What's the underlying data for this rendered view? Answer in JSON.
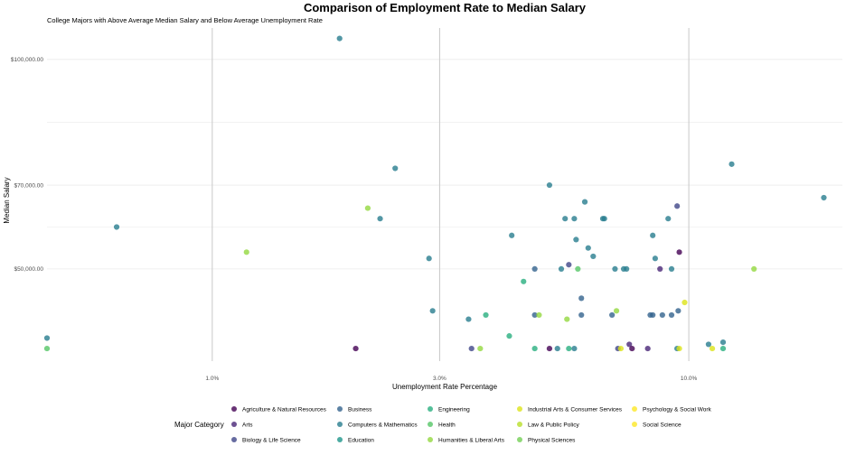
{
  "chart_data": {
    "type": "scatter",
    "title": "Comparison of Employment Rate to Median Salary",
    "subtitle": "College Majors with Above Average Median Salary and Below Average Unemployment Rate",
    "xlabel": "Unemployment Rate Percentage",
    "ylabel": "Median Salary",
    "x_scale": "log",
    "xlim": [
      0.45,
      21.0
    ],
    "ylim": [
      28000,
      107500
    ],
    "x_ticks": [
      1.0,
      3.0,
      10.0
    ],
    "x_tick_labels": [
      "1.0%",
      "3.0%",
      "10.0%"
    ],
    "y_ticks": [
      50000,
      70000,
      100000
    ],
    "y_tick_labels": [
      "$50,000.00",
      "$70,000.00",
      "$100,000.00"
    ],
    "grid": true,
    "legend": {
      "title": "Major Category",
      "position": "bottom",
      "columns": 5,
      "entries": [
        {
          "name": "Agriculture & Natural Resources",
          "color": "#440154"
        },
        {
          "name": "Arts",
          "color": "#482677"
        },
        {
          "name": "Biology & Life Science",
          "color": "#404688"
        },
        {
          "name": "Business",
          "color": "#33638D"
        },
        {
          "name": "Computers & Mathematics",
          "color": "#287D8E"
        },
        {
          "name": "Education",
          "color": "#1F968B"
        },
        {
          "name": "Engineering",
          "color": "#29AF7F"
        },
        {
          "name": "Health",
          "color": "#55C667"
        },
        {
          "name": "Humanities & Liberal Arts",
          "color": "#94D840"
        },
        {
          "name": "Industrial Arts & Consumer Services",
          "color": "#DCE319"
        },
        {
          "name": "Law & Public Policy",
          "color": "#B8DE29"
        },
        {
          "name": "Physical Sciences",
          "color": "#73D055"
        },
        {
          "name": "Psychology & Social Work",
          "color": "#FDE725"
        },
        {
          "name": "Social Science",
          "color": "#FDE725"
        }
      ]
    },
    "points": [
      {
        "x": 1.85,
        "y": 105000,
        "c": "#287D8E"
      },
      {
        "x": 0.63,
        "y": 60000,
        "c": "#287D8E"
      },
      {
        "x": 1.18,
        "y": 54000,
        "c": "#94D840"
      },
      {
        "x": 2.42,
        "y": 74000,
        "c": "#287D8E"
      },
      {
        "x": 2.25,
        "y": 62000,
        "c": "#287D8E"
      },
      {
        "x": 2.12,
        "y": 64500,
        "c": "#94D840"
      },
      {
        "x": 2.85,
        "y": 52500,
        "c": "#287D8E"
      },
      {
        "x": 2.9,
        "y": 40000,
        "c": "#287D8E"
      },
      {
        "x": 3.45,
        "y": 38000,
        "c": "#287D8E"
      },
      {
        "x": 3.75,
        "y": 39000,
        "c": "#29AF7F"
      },
      {
        "x": 4.25,
        "y": 58000,
        "c": "#287D8E"
      },
      {
        "x": 4.5,
        "y": 47000,
        "c": "#29AF7F"
      },
      {
        "x": 4.2,
        "y": 34000,
        "c": "#29AF7F"
      },
      {
        "x": 5.1,
        "y": 70000,
        "c": "#287D8E"
      },
      {
        "x": 4.75,
        "y": 50000,
        "c": "#33638D"
      },
      {
        "x": 4.75,
        "y": 39000,
        "c": "#33638D"
      },
      {
        "x": 4.85,
        "y": 39000,
        "c": "#94D840"
      },
      {
        "x": 5.4,
        "y": 50000,
        "c": "#287D8E"
      },
      {
        "x": 5.6,
        "y": 51000,
        "c": "#404688"
      },
      {
        "x": 5.8,
        "y": 57000,
        "c": "#287D8E"
      },
      {
        "x": 5.85,
        "y": 50000,
        "c": "#55C667"
      },
      {
        "x": 5.95,
        "y": 43000,
        "c": "#33638D"
      },
      {
        "x": 5.95,
        "y": 39000,
        "c": "#33638D"
      },
      {
        "x": 6.05,
        "y": 66000,
        "c": "#287D8E"
      },
      {
        "x": 6.15,
        "y": 55000,
        "c": "#287D8E"
      },
      {
        "x": 6.3,
        "y": 53000,
        "c": "#287D8E"
      },
      {
        "x": 5.5,
        "y": 62000,
        "c": "#287D8E"
      },
      {
        "x": 5.75,
        "y": 62000,
        "c": "#287D8E"
      },
      {
        "x": 5.55,
        "y": 38000,
        "c": "#94D840"
      },
      {
        "x": 6.6,
        "y": 62000,
        "c": "#287D8E"
      },
      {
        "x": 6.65,
        "y": 62000,
        "c": "#287D8E"
      },
      {
        "x": 7.0,
        "y": 50000,
        "c": "#287D8E"
      },
      {
        "x": 7.05,
        "y": 40000,
        "c": "#94D840"
      },
      {
        "x": 7.3,
        "y": 50000,
        "c": "#287D8E"
      },
      {
        "x": 7.4,
        "y": 50000,
        "c": "#287D8E"
      },
      {
        "x": 6.9,
        "y": 39000,
        "c": "#33638D"
      },
      {
        "x": 7.5,
        "y": 32000,
        "c": "#482677"
      },
      {
        "x": 8.3,
        "y": 39000,
        "c": "#33638D"
      },
      {
        "x": 8.4,
        "y": 39000,
        "c": "#33638D"
      },
      {
        "x": 8.4,
        "y": 58000,
        "c": "#287D8E"
      },
      {
        "x": 8.5,
        "y": 52500,
        "c": "#287D8E"
      },
      {
        "x": 8.7,
        "y": 50000,
        "c": "#482677"
      },
      {
        "x": 8.8,
        "y": 39000,
        "c": "#33638D"
      },
      {
        "x": 9.05,
        "y": 62000,
        "c": "#287D8E"
      },
      {
        "x": 9.2,
        "y": 50000,
        "c": "#287D8E"
      },
      {
        "x": 9.2,
        "y": 39000,
        "c": "#33638D"
      },
      {
        "x": 9.45,
        "y": 65000,
        "c": "#404688"
      },
      {
        "x": 9.55,
        "y": 54000,
        "c": "#440154"
      },
      {
        "x": 9.5,
        "y": 40000,
        "c": "#33638D"
      },
      {
        "x": 9.8,
        "y": 42000,
        "c": "#DCE319"
      },
      {
        "x": 12.3,
        "y": 75000,
        "c": "#287D8E"
      },
      {
        "x": 19.2,
        "y": 67000,
        "c": "#287D8E"
      },
      {
        "x": 13.7,
        "y": 50000,
        "c": "#94D840"
      },
      {
        "x": 11.0,
        "y": 32000,
        "c": "#287D8E"
      },
      {
        "x": 11.8,
        "y": 32500,
        "c": "#287D8E"
      },
      {
        "x": 0.45,
        "y": 33500,
        "c": "#287D8E"
      },
      {
        "x": 0.45,
        "y": 31000,
        "c": "#55C667"
      },
      {
        "x": 2.0,
        "y": 31000,
        "c": "#440154"
      },
      {
        "x": 3.5,
        "y": 31000,
        "c": "#404688"
      },
      {
        "x": 3.65,
        "y": 31000,
        "c": "#94D840"
      },
      {
        "x": 4.75,
        "y": 31000,
        "c": "#29AF7F"
      },
      {
        "x": 5.1,
        "y": 31000,
        "c": "#440154"
      },
      {
        "x": 5.3,
        "y": 31000,
        "c": "#287D8E"
      },
      {
        "x": 5.6,
        "y": 31000,
        "c": "#29AF7F"
      },
      {
        "x": 5.75,
        "y": 31000,
        "c": "#287D8E"
      },
      {
        "x": 7.1,
        "y": 31000,
        "c": "#404688"
      },
      {
        "x": 7.2,
        "y": 31000,
        "c": "#DCE319"
      },
      {
        "x": 7.6,
        "y": 31000,
        "c": "#440154"
      },
      {
        "x": 8.2,
        "y": 31000,
        "c": "#482677"
      },
      {
        "x": 9.45,
        "y": 31000,
        "c": "#287D8E"
      },
      {
        "x": 9.55,
        "y": 31000,
        "c": "#DCE319"
      },
      {
        "x": 11.2,
        "y": 31000,
        "c": "#DCE319"
      },
      {
        "x": 11.8,
        "y": 31000,
        "c": "#29AF7F"
      }
    ]
  }
}
